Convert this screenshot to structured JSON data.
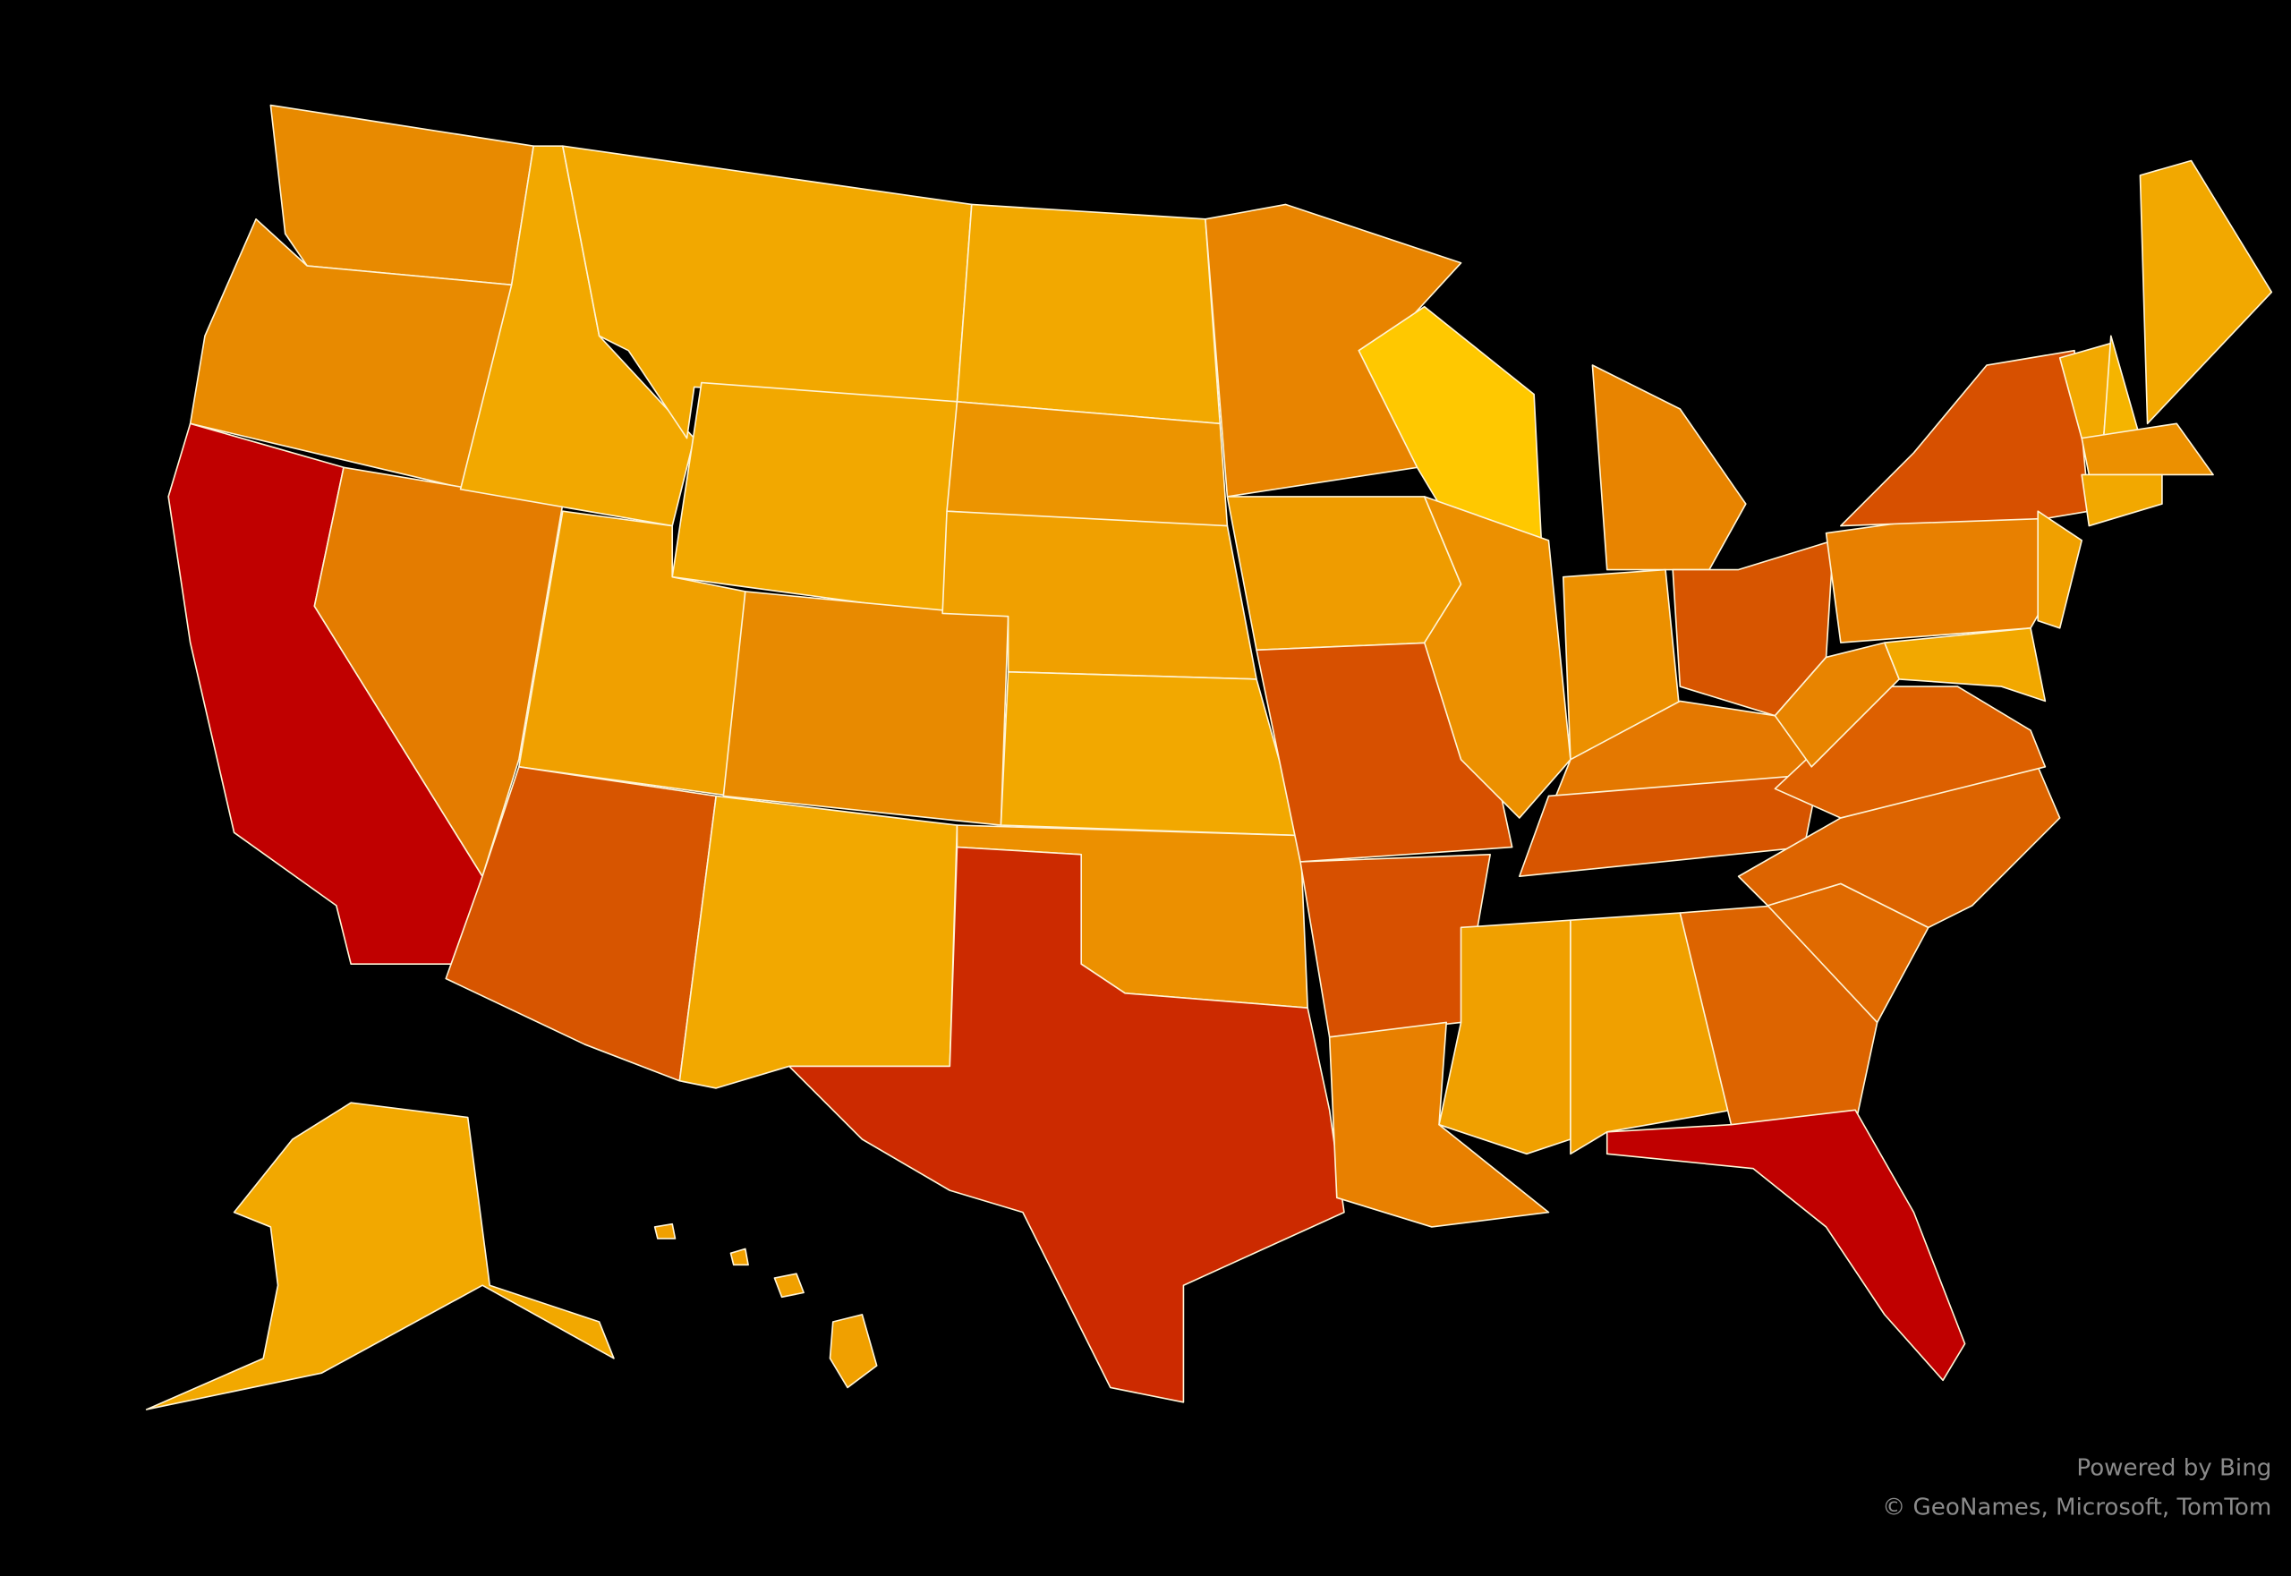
{
  "attribution": {
    "powered_by": "Powered by Bing",
    "copyright": "© GeoNames, Microsoft, TomTom"
  }
}
